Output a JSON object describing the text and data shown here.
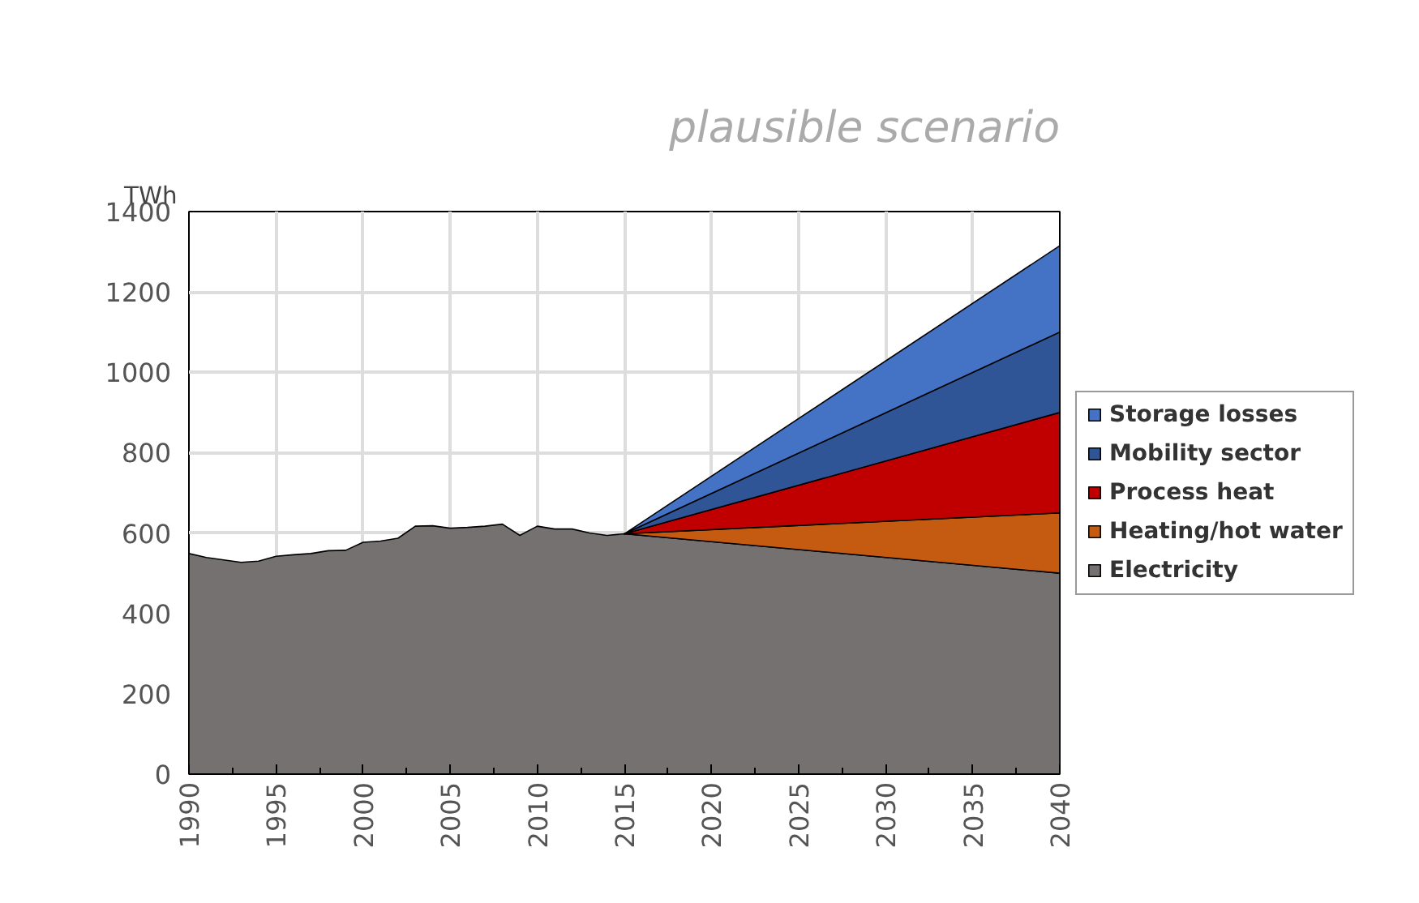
{
  "chart_data": {
    "type": "area",
    "stacked": true,
    "ylabel": "TWh",
    "annotations": [
      "plausible scenario"
    ],
    "x": [
      1990,
      1991,
      1992,
      1993,
      1994,
      1995,
      1996,
      1997,
      1998,
      1999,
      2000,
      2001,
      2002,
      2003,
      2004,
      2005,
      2006,
      2007,
      2008,
      2009,
      2010,
      2011,
      2012,
      2013,
      2014,
      2015,
      2040
    ],
    "series": [
      {
        "name": "Electricity",
        "color": "#767171",
        "values": [
          549,
          539,
          533,
          527,
          530,
          542,
          546,
          549,
          556,
          557,
          577,
          580,
          587,
          617,
          618,
          612,
          614,
          617,
          622,
          594,
          617,
          610,
          610,
          600,
          594,
          598,
          500
        ]
      },
      {
        "name": "Heating/hot water",
        "color": "#c55a11",
        "values": [
          null,
          null,
          null,
          null,
          null,
          null,
          null,
          null,
          null,
          null,
          null,
          null,
          null,
          null,
          null,
          null,
          null,
          null,
          null,
          null,
          null,
          null,
          null,
          null,
          null,
          0,
          150
        ]
      },
      {
        "name": "Process heat",
        "color": "#c00000",
        "values": [
          null,
          null,
          null,
          null,
          null,
          null,
          null,
          null,
          null,
          null,
          null,
          null,
          null,
          null,
          null,
          null,
          null,
          null,
          null,
          null,
          null,
          null,
          null,
          null,
          null,
          0,
          250
        ]
      },
      {
        "name": "Mobility sector",
        "color": "#2f5597",
        "values": [
          null,
          null,
          null,
          null,
          null,
          null,
          null,
          null,
          null,
          null,
          null,
          null,
          null,
          null,
          null,
          null,
          null,
          null,
          null,
          null,
          null,
          null,
          null,
          null,
          null,
          0,
          200
        ]
      },
      {
        "name": "Storage losses",
        "color": "#4472c4",
        "values": [
          null,
          null,
          null,
          null,
          null,
          null,
          null,
          null,
          null,
          null,
          null,
          null,
          null,
          null,
          null,
          null,
          null,
          null,
          null,
          null,
          null,
          null,
          null,
          null,
          null,
          0,
          215
        ]
      }
    ],
    "xlim": [
      1990,
      2040
    ],
    "xticks": [
      1990,
      1995,
      2000,
      2005,
      2010,
      2015,
      2020,
      2025,
      2030,
      2035,
      2040
    ],
    "ylim": [
      0,
      1400
    ],
    "yticks": [
      0,
      200,
      400,
      600,
      800,
      1000,
      1200,
      1400
    ],
    "grid": true,
    "legend": "right"
  }
}
